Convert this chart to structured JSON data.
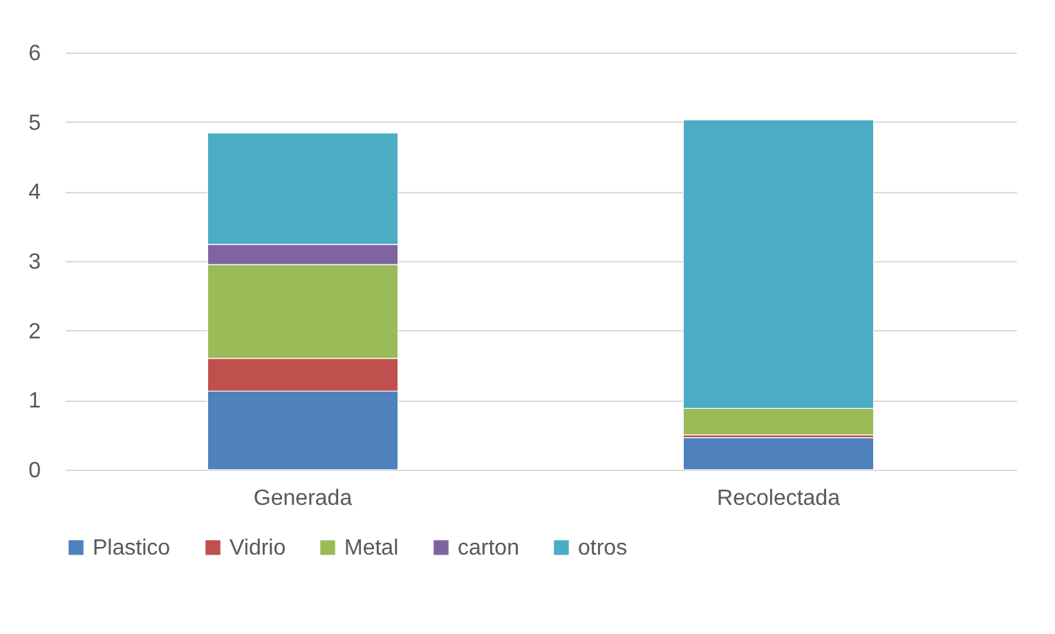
{
  "chart_data": {
    "type": "bar",
    "stacked": true,
    "categories": [
      "Generada",
      "Recolectada"
    ],
    "series": [
      {
        "name": "Plastico",
        "color": "#4f81bd",
        "values": [
          1.13,
          0.46
        ]
      },
      {
        "name": "Vidrio",
        "color": "#c0504d",
        "values": [
          0.47,
          0.04
        ]
      },
      {
        "name": "Metal",
        "color": "#9bbb59",
        "values": [
          1.35,
          0.38
        ]
      },
      {
        "name": "carton",
        "color": "#8064a2",
        "values": [
          0.29,
          0
        ]
      },
      {
        "name": "otros",
        "color": "#4bacc6",
        "values": [
          1.6,
          4.15
        ]
      }
    ],
    "ylim": [
      0,
      6
    ],
    "yticks": [
      0,
      1,
      2,
      3,
      4,
      5,
      6
    ],
    "grid": "y",
    "legend": "bottom"
  }
}
